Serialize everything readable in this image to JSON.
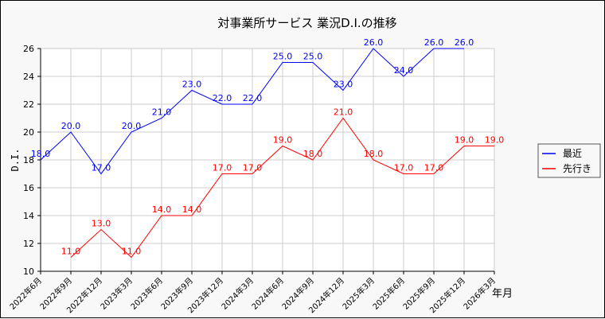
{
  "chart_data": {
    "type": "line",
    "title": "対事業所サービス 業況D.I.の推移",
    "xlabel": "年月",
    "ylabel": "D.I.",
    "ylim": [
      10,
      26
    ],
    "yticks": [
      10,
      12,
      14,
      16,
      18,
      20,
      22,
      24,
      26
    ],
    "grid": true,
    "legend_placement": "right",
    "categories": [
      "2022年6月",
      "2022年9月",
      "2022年12月",
      "2023年3月",
      "2023年6月",
      "2023年9月",
      "2023年12月",
      "2024年3月",
      "2024年6月",
      "2024年9月",
      "2024年12月",
      "2025年3月",
      "2025年6月",
      "2025年9月",
      "2025年12月",
      "2026年3月"
    ],
    "series": [
      {
        "name": "最近",
        "color": "#0000ff",
        "values": [
          18,
          20,
          17,
          20,
          21,
          23,
          22,
          22,
          25,
          25,
          23,
          26,
          24,
          26,
          26,
          null
        ],
        "labels": [
          "18.0",
          "20.0",
          "17.0",
          "20.0",
          "21.0",
          "23.0",
          "22.0",
          "22.0",
          "25.0",
          "25.0",
          "23.0",
          "26.0",
          "24.0",
          "26.0",
          "26.0",
          null
        ]
      },
      {
        "name": "先行き",
        "color": "#ff0000",
        "values": [
          null,
          11,
          13,
          11,
          14,
          14,
          17,
          17,
          19,
          18,
          21,
          18,
          17,
          17,
          19,
          19
        ],
        "labels": [
          null,
          "11.0",
          "13.0",
          "11.0",
          "14.0",
          "14.0",
          "17.0",
          "17.0",
          "19.0",
          "18.0",
          "21.0",
          "18.0",
          "17.0",
          "17.0",
          "19.0",
          "19.0"
        ]
      }
    ]
  }
}
